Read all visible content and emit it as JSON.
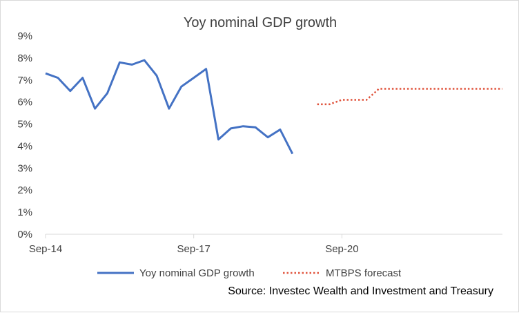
{
  "chart_data": {
    "type": "line",
    "title": "Yoy nominal GDP growth",
    "xlabel": "",
    "ylabel": "",
    "ylim": [
      0,
      9
    ],
    "y_ticks": [
      "0%",
      "1%",
      "2%",
      "3%",
      "4%",
      "5%",
      "6%",
      "7%",
      "8%",
      "9%"
    ],
    "x_range": [
      "2014-09",
      "2023-12"
    ],
    "x_ticks": [
      {
        "x": "2014-09",
        "label": "Sep-14"
      },
      {
        "x": "2017-09",
        "label": "Sep-17"
      },
      {
        "x": "2020-09",
        "label": "Sep-20"
      }
    ],
    "grid": false,
    "legend_position": "bottom",
    "series": [
      {
        "name": "Yoy nominal GDP growth",
        "color": "#4472c4",
        "style": "solid",
        "points": [
          {
            "x": "2014-09",
            "y": 7.3
          },
          {
            "x": "2014-12",
            "y": 7.1
          },
          {
            "x": "2015-03",
            "y": 6.5
          },
          {
            "x": "2015-06",
            "y": 7.1
          },
          {
            "x": "2015-09",
            "y": 5.7
          },
          {
            "x": "2015-12",
            "y": 6.4
          },
          {
            "x": "2016-03",
            "y": 7.8
          },
          {
            "x": "2016-06",
            "y": 7.7
          },
          {
            "x": "2016-09",
            "y": 7.9
          },
          {
            "x": "2016-12",
            "y": 7.2
          },
          {
            "x": "2017-03",
            "y": 5.7
          },
          {
            "x": "2017-06",
            "y": 6.7
          },
          {
            "x": "2017-09",
            "y": 7.1
          },
          {
            "x": "2017-12",
            "y": 7.5
          },
          {
            "x": "2018-03",
            "y": 4.3
          },
          {
            "x": "2018-06",
            "y": 4.8
          },
          {
            "x": "2018-09",
            "y": 4.9
          },
          {
            "x": "2018-12",
            "y": 4.85
          },
          {
            "x": "2019-03",
            "y": 4.4
          },
          {
            "x": "2019-06",
            "y": 4.75
          },
          {
            "x": "2019-09",
            "y": 3.65
          }
        ]
      },
      {
        "name": "MTBPS forecast",
        "color": "#e0533c",
        "style": "dotted",
        "points": [
          {
            "x": "2020-03",
            "y": 5.9
          },
          {
            "x": "2020-06",
            "y": 5.9
          },
          {
            "x": "2020-09",
            "y": 6.1
          },
          {
            "x": "2020-12",
            "y": 6.1
          },
          {
            "x": "2021-03",
            "y": 6.1
          },
          {
            "x": "2021-06",
            "y": 6.6
          },
          {
            "x": "2021-09",
            "y": 6.6
          },
          {
            "x": "2021-12",
            "y": 6.6
          },
          {
            "x": "2022-03",
            "y": 6.6
          },
          {
            "x": "2022-06",
            "y": 6.6
          },
          {
            "x": "2022-09",
            "y": 6.6
          },
          {
            "x": "2022-12",
            "y": 6.6
          },
          {
            "x": "2023-03",
            "y": 6.6
          },
          {
            "x": "2023-06",
            "y": 6.6
          },
          {
            "x": "2023-09",
            "y": 6.6
          },
          {
            "x": "2023-12",
            "y": 6.6
          }
        ]
      }
    ],
    "source_note": "Source: Investec Wealth and Investment and Treasury"
  }
}
